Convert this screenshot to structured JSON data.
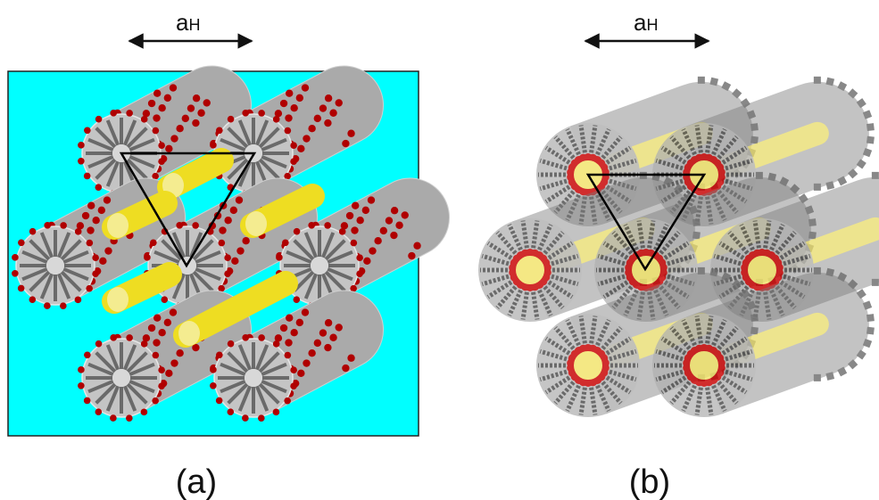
{
  "panels": [
    {
      "id": "a",
      "caption": "(a)",
      "lattice_label": "a",
      "lattice_label_sub": "H",
      "background_color": "#00ffff",
      "rods": [
        {
          "col": 0,
          "row": 0
        },
        {
          "col": 1,
          "row": 0
        },
        {
          "col": -0.5,
          "row": 1
        },
        {
          "col": 0.5,
          "row": 1
        },
        {
          "col": 1.5,
          "row": 1
        },
        {
          "col": 0,
          "row": 2
        },
        {
          "col": 1,
          "row": 2
        }
      ],
      "dopant_color": "#eedd22",
      "counterion_color": "#b00000",
      "micelle_color": "#aaaaaa"
    },
    {
      "id": "b",
      "caption": "(b)",
      "lattice_label": "a",
      "lattice_label_sub": "H",
      "rods": [
        {
          "col": 0,
          "row": 0
        },
        {
          "col": 1,
          "row": 0
        },
        {
          "col": -0.5,
          "row": 1
        },
        {
          "col": 0.5,
          "row": 1
        },
        {
          "col": 1.5,
          "row": 1
        },
        {
          "col": 0,
          "row": 2
        },
        {
          "col": 1,
          "row": 2
        }
      ],
      "core_color": "#f2e46a",
      "headgroup_color": "#c80000",
      "micelle_color": "#7a7a7a"
    }
  ]
}
